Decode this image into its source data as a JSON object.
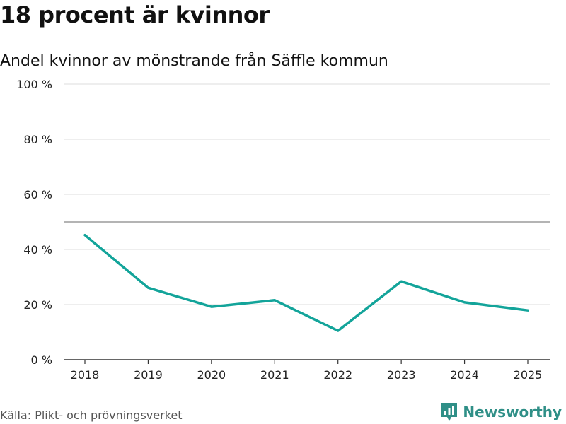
{
  "title": "18 procent är kvinnor",
  "subtitle": "Andel kvinnor av mönstrande från Säffle kommun",
  "source": "Källa: Plikt- och prövningsverket",
  "brand": "Newsworthy",
  "colors": {
    "line": "#13a49a",
    "brand": "#2f8f87",
    "grid": "#dddddd",
    "reference": "#888888",
    "axis": "#333333"
  },
  "chart_data": {
    "type": "line",
    "title": "18 procent är kvinnor",
    "subtitle": "Andel kvinnor av mönstrande från Säffle kommun",
    "xlabel": "",
    "ylabel": "",
    "categories": [
      "2018",
      "2019",
      "2020",
      "2021",
      "2022",
      "2023",
      "2024",
      "2025"
    ],
    "series": [
      {
        "name": "Andel kvinnor",
        "values": [
          45.2,
          26.1,
          19.2,
          21.6,
          10.5,
          28.4,
          20.8,
          17.9
        ]
      }
    ],
    "ylim": [
      0,
      100
    ],
    "yticks": [
      0,
      20,
      40,
      60,
      80,
      100
    ],
    "ytick_labels": [
      "0 %",
      "20 %",
      "40 %",
      "60 %",
      "80 %",
      "100 %"
    ],
    "reference_line": 50,
    "grid": true,
    "legend": "none"
  }
}
